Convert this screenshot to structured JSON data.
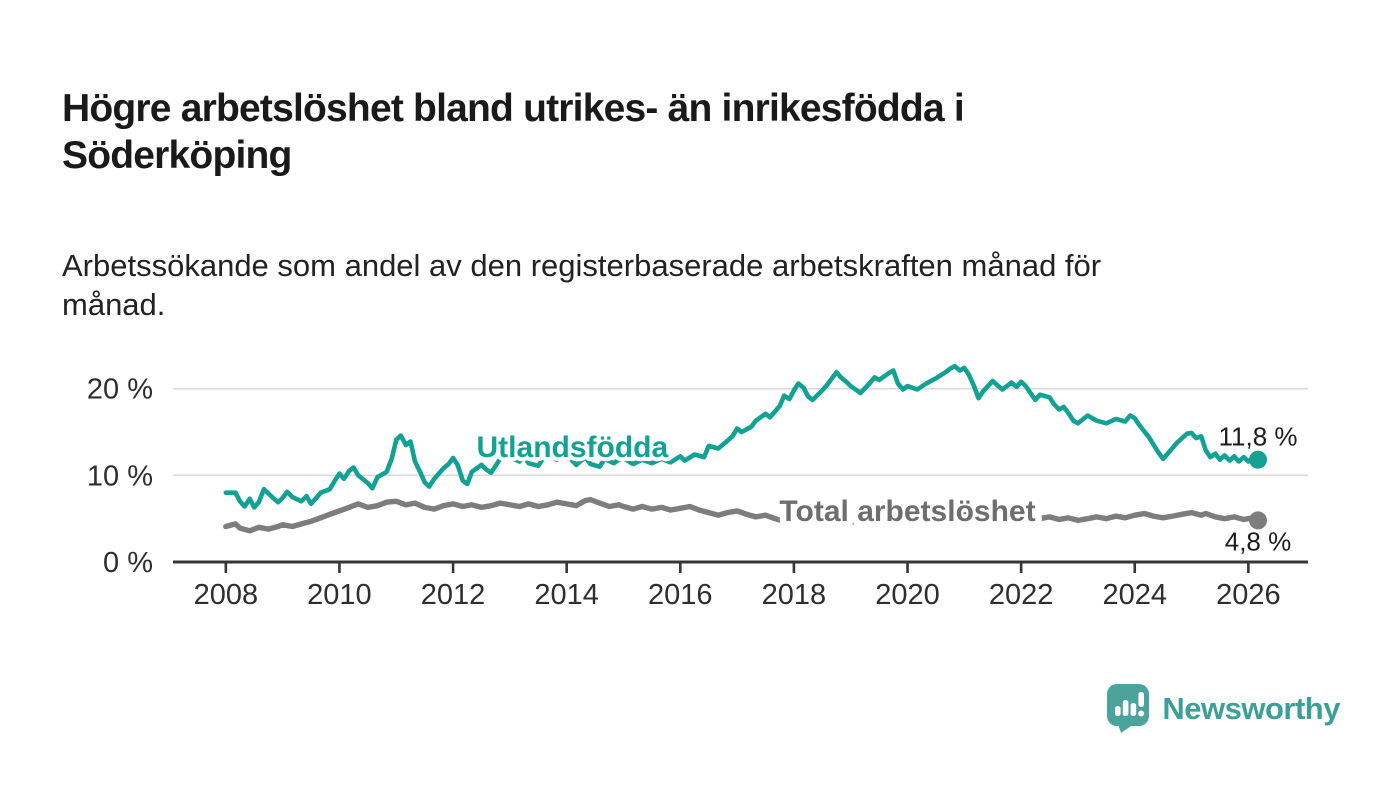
{
  "header": {
    "title": "Högre arbetslöshet bland utrikes- än inrikesfödda i Söderköping",
    "subtitle": "Arbetssökande som andel av den registerbaserade arbetskraften månad för månad."
  },
  "footer": {
    "brand": "Newsworthy",
    "brand_color": "#3d9f95",
    "logo_icon": "speech-bubble-bar-chart"
  },
  "chart_data": {
    "type": "line",
    "title": "Högre arbetslöshet bland utrikes- än inrikesfödda i Söderköping",
    "subtitle": "Arbetssökande som andel av den registerbaserade arbetskraften månad för månad.",
    "xlabel": "",
    "ylabel": "",
    "grid": "horizontal",
    "legend_position": "inline-line-labels",
    "xlim": [
      2007.07,
      2027.05
    ],
    "ylim": [
      0,
      24
    ],
    "x_ticks": [
      2008,
      2010,
      2012,
      2014,
      2016,
      2018,
      2020,
      2022,
      2024,
      2026
    ],
    "y_ticks": [
      {
        "value": 0,
        "label": "0 %"
      },
      {
        "value": 10,
        "label": "10 %"
      },
      {
        "value": 20,
        "label": "20 %"
      }
    ],
    "colors": {
      "grid": "#d9d9d9",
      "axis": "#363636",
      "tick_text": "#2e2e2e",
      "annotation_text": "#1c1c1c"
    },
    "series": [
      {
        "name": "Utlandsfödda",
        "color": "#12a192",
        "width": 4.6,
        "halo": 8,
        "end_label": "11,8 %",
        "end_value": 11.8,
        "end_label_side": "above",
        "label_at": {
          "x": 2014.1,
          "y": 13.4
        },
        "points": [
          [
            2008,
            8
          ],
          [
            2008.17,
            8
          ],
          [
            2008.25,
            7
          ],
          [
            2008.33,
            6.4
          ],
          [
            2008.42,
            7.3
          ],
          [
            2008.5,
            6.3
          ],
          [
            2008.58,
            6.9
          ],
          [
            2008.67,
            8.4
          ],
          [
            2008.83,
            7.4
          ],
          [
            2008.92,
            6.9
          ],
          [
            2009,
            7.4
          ],
          [
            2009.08,
            8.1
          ],
          [
            2009.17,
            7.5
          ],
          [
            2009.33,
            7
          ],
          [
            2009.42,
            7.6
          ],
          [
            2009.5,
            6.7
          ],
          [
            2009.58,
            7.3
          ],
          [
            2009.67,
            8
          ],
          [
            2009.83,
            8.4
          ],
          [
            2009.92,
            9.4
          ],
          [
            2010,
            10.2
          ],
          [
            2010.08,
            9.6
          ],
          [
            2010.17,
            10.5
          ],
          [
            2010.25,
            10.9
          ],
          [
            2010.33,
            10
          ],
          [
            2010.5,
            9.1
          ],
          [
            2010.58,
            8.5
          ],
          [
            2010.67,
            9.8
          ],
          [
            2010.83,
            10.4
          ],
          [
            2010.92,
            11.9
          ],
          [
            2011,
            14.1
          ],
          [
            2011.08,
            14.6
          ],
          [
            2011.17,
            13.5
          ],
          [
            2011.25,
            13.9
          ],
          [
            2011.33,
            11.6
          ],
          [
            2011.42,
            10.4
          ],
          [
            2011.5,
            9.2
          ],
          [
            2011.58,
            8.7
          ],
          [
            2011.67,
            9.6
          ],
          [
            2011.83,
            10.8
          ],
          [
            2011.92,
            11.3
          ],
          [
            2012,
            12
          ],
          [
            2012.08,
            11.2
          ],
          [
            2012.17,
            9.4
          ],
          [
            2012.25,
            9
          ],
          [
            2012.33,
            10.4
          ],
          [
            2012.5,
            11.2
          ],
          [
            2012.58,
            10.7
          ],
          [
            2012.67,
            10.3
          ],
          [
            2012.83,
            11.9
          ],
          [
            2012.92,
            12.5
          ],
          [
            2013,
            12.1
          ],
          [
            2013.17,
            11.6
          ],
          [
            2013.25,
            12.2
          ],
          [
            2013.33,
            11.4
          ],
          [
            2013.5,
            11.1
          ],
          [
            2013.58,
            11.9
          ],
          [
            2013.67,
            12.4
          ],
          [
            2013.83,
            11.8
          ],
          [
            2013.92,
            12.3
          ],
          [
            2014,
            12.6
          ],
          [
            2014.08,
            11.8
          ],
          [
            2014.17,
            11.2
          ],
          [
            2014.33,
            12.1
          ],
          [
            2014.42,
            11.3
          ],
          [
            2014.58,
            11
          ],
          [
            2014.67,
            11.9
          ],
          [
            2014.83,
            11.4
          ],
          [
            2014.92,
            11.8
          ],
          [
            2015,
            12
          ],
          [
            2015.17,
            11.3
          ],
          [
            2015.33,
            11.8
          ],
          [
            2015.5,
            11.4
          ],
          [
            2015.67,
            11.9
          ],
          [
            2015.83,
            11.5
          ],
          [
            2016,
            12.2
          ],
          [
            2016.08,
            11.7
          ],
          [
            2016.25,
            12.4
          ],
          [
            2016.42,
            12.1
          ],
          [
            2016.5,
            13.4
          ],
          [
            2016.67,
            13.1
          ],
          [
            2016.83,
            14
          ],
          [
            2016.92,
            14.5
          ],
          [
            2017,
            15.4
          ],
          [
            2017.08,
            15
          ],
          [
            2017.25,
            15.6
          ],
          [
            2017.33,
            16.3
          ],
          [
            2017.5,
            17.1
          ],
          [
            2017.58,
            16.7
          ],
          [
            2017.75,
            18
          ],
          [
            2017.83,
            19.2
          ],
          [
            2017.92,
            18.8
          ],
          [
            2018,
            19.8
          ],
          [
            2018.08,
            20.6
          ],
          [
            2018.17,
            20.1
          ],
          [
            2018.25,
            19.1
          ],
          [
            2018.33,
            18.7
          ],
          [
            2018.5,
            19.8
          ],
          [
            2018.58,
            20.4
          ],
          [
            2018.67,
            21.2
          ],
          [
            2018.75,
            21.9
          ],
          [
            2018.83,
            21.3
          ],
          [
            2018.92,
            20.8
          ],
          [
            2019,
            20.3
          ],
          [
            2019.17,
            19.5
          ],
          [
            2019.33,
            20.6
          ],
          [
            2019.42,
            21.3
          ],
          [
            2019.5,
            21
          ],
          [
            2019.67,
            21.8
          ],
          [
            2019.75,
            22.1
          ],
          [
            2019.83,
            20.6
          ],
          [
            2019.92,
            19.9
          ],
          [
            2020,
            20.3
          ],
          [
            2020.17,
            19.9
          ],
          [
            2020.33,
            20.6
          ],
          [
            2020.5,
            21.2
          ],
          [
            2020.67,
            21.9
          ],
          [
            2020.75,
            22.3
          ],
          [
            2020.83,
            22.6
          ],
          [
            2020.92,
            22.1
          ],
          [
            2021,
            22.4
          ],
          [
            2021.08,
            21.6
          ],
          [
            2021.17,
            20.3
          ],
          [
            2021.25,
            18.9
          ],
          [
            2021.33,
            19.7
          ],
          [
            2021.5,
            20.9
          ],
          [
            2021.58,
            20.4
          ],
          [
            2021.67,
            19.9
          ],
          [
            2021.83,
            20.7
          ],
          [
            2021.92,
            20.2
          ],
          [
            2022,
            20.8
          ],
          [
            2022.08,
            20.3
          ],
          [
            2022.25,
            18.7
          ],
          [
            2022.33,
            19.3
          ],
          [
            2022.5,
            19
          ],
          [
            2022.58,
            18.2
          ],
          [
            2022.67,
            17.6
          ],
          [
            2022.75,
            17.9
          ],
          [
            2022.83,
            17.2
          ],
          [
            2022.92,
            16.3
          ],
          [
            2023,
            16
          ],
          [
            2023.17,
            16.9
          ],
          [
            2023.33,
            16.3
          ],
          [
            2023.5,
            16
          ],
          [
            2023.67,
            16.5
          ],
          [
            2023.83,
            16.2
          ],
          [
            2023.92,
            16.9
          ],
          [
            2024,
            16.6
          ],
          [
            2024.08,
            15.8
          ],
          [
            2024.25,
            14.4
          ],
          [
            2024.42,
            12.6
          ],
          [
            2024.5,
            11.9
          ],
          [
            2024.58,
            12.5
          ],
          [
            2024.75,
            13.8
          ],
          [
            2024.92,
            14.8
          ],
          [
            2025,
            14.9
          ],
          [
            2025.08,
            14.3
          ],
          [
            2025.17,
            14.5
          ],
          [
            2025.25,
            12.9
          ],
          [
            2025.33,
            12.1
          ],
          [
            2025.42,
            12.5
          ],
          [
            2025.5,
            11.8
          ],
          [
            2025.58,
            12.3
          ],
          [
            2025.67,
            11.7
          ],
          [
            2025.75,
            12.2
          ],
          [
            2025.83,
            11.6
          ],
          [
            2025.92,
            12.1
          ],
          [
            2026,
            11.6
          ],
          [
            2026.08,
            12
          ],
          [
            2026.17,
            11.8
          ]
        ]
      },
      {
        "name": "Total arbetslöshet",
        "color": "#7d7d7d",
        "label_color": "#6e6e6e",
        "width": 5.4,
        "halo": 13,
        "end_label": "4,8 %",
        "end_value": 4.8,
        "end_label_side": "below",
        "label_at": {
          "x": 2020.0,
          "y": 6.0
        },
        "points": [
          [
            2008,
            4.1
          ],
          [
            2008.17,
            4.4
          ],
          [
            2008.25,
            3.9
          ],
          [
            2008.42,
            3.6
          ],
          [
            2008.58,
            4
          ],
          [
            2008.75,
            3.8
          ],
          [
            2008.92,
            4.1
          ],
          [
            2009,
            4.3
          ],
          [
            2009.17,
            4.1
          ],
          [
            2009.33,
            4.4
          ],
          [
            2009.5,
            4.7
          ],
          [
            2009.67,
            5.1
          ],
          [
            2009.83,
            5.5
          ],
          [
            2010,
            5.9
          ],
          [
            2010.17,
            6.3
          ],
          [
            2010.33,
            6.7
          ],
          [
            2010.5,
            6.3
          ],
          [
            2010.67,
            6.5
          ],
          [
            2010.83,
            6.9
          ],
          [
            2011,
            7
          ],
          [
            2011.17,
            6.6
          ],
          [
            2011.33,
            6.8
          ],
          [
            2011.5,
            6.3
          ],
          [
            2011.67,
            6.1
          ],
          [
            2011.83,
            6.5
          ],
          [
            2012,
            6.7
          ],
          [
            2012.17,
            6.4
          ],
          [
            2012.33,
            6.6
          ],
          [
            2012.5,
            6.3
          ],
          [
            2012.67,
            6.5
          ],
          [
            2012.83,
            6.8
          ],
          [
            2013,
            6.6
          ],
          [
            2013.17,
            6.4
          ],
          [
            2013.33,
            6.7
          ],
          [
            2013.5,
            6.4
          ],
          [
            2013.67,
            6.6
          ],
          [
            2013.83,
            6.9
          ],
          [
            2014,
            6.7
          ],
          [
            2014.17,
            6.5
          ],
          [
            2014.33,
            7.1
          ],
          [
            2014.42,
            7.2
          ],
          [
            2014.58,
            6.8
          ],
          [
            2014.75,
            6.4
          ],
          [
            2014.92,
            6.6
          ],
          [
            2015,
            6.4
          ],
          [
            2015.17,
            6.1
          ],
          [
            2015.33,
            6.4
          ],
          [
            2015.5,
            6.1
          ],
          [
            2015.67,
            6.3
          ],
          [
            2015.83,
            6
          ],
          [
            2016,
            6.2
          ],
          [
            2016.17,
            6.4
          ],
          [
            2016.33,
            6
          ],
          [
            2016.5,
            5.7
          ],
          [
            2016.67,
            5.4
          ],
          [
            2016.83,
            5.7
          ],
          [
            2017,
            5.9
          ],
          [
            2017.17,
            5.5
          ],
          [
            2017.33,
            5.2
          ],
          [
            2017.5,
            5.4
          ],
          [
            2017.67,
            5
          ],
          [
            2017.83,
            4.7
          ],
          [
            2018,
            4.6
          ],
          [
            2018.25,
            4.8
          ],
          [
            2018.5,
            5
          ],
          [
            2018.75,
            4.7
          ],
          [
            2019,
            4.6
          ],
          [
            2019.25,
            4.8
          ],
          [
            2019.5,
            5
          ],
          [
            2019.75,
            5.2
          ],
          [
            2020,
            5.4
          ],
          [
            2020.25,
            6.1
          ],
          [
            2020.5,
            6.4
          ],
          [
            2020.75,
            6.1
          ],
          [
            2021,
            5.8
          ],
          [
            2021.25,
            5.5
          ],
          [
            2021.5,
            5.2
          ],
          [
            2021.75,
            5
          ],
          [
            2022,
            4.9
          ],
          [
            2022.17,
            4.8
          ],
          [
            2022.33,
            5
          ],
          [
            2022.5,
            5.2
          ],
          [
            2022.67,
            4.9
          ],
          [
            2022.83,
            5.1
          ],
          [
            2023,
            4.8
          ],
          [
            2023.17,
            5
          ],
          [
            2023.33,
            5.2
          ],
          [
            2023.5,
            5
          ],
          [
            2023.67,
            5.3
          ],
          [
            2023.83,
            5.1
          ],
          [
            2024,
            5.4
          ],
          [
            2024.17,
            5.6
          ],
          [
            2024.33,
            5.3
          ],
          [
            2024.5,
            5.1
          ],
          [
            2024.67,
            5.3
          ],
          [
            2024.83,
            5.5
          ],
          [
            2025,
            5.7
          ],
          [
            2025.17,
            5.4
          ],
          [
            2025.25,
            5.6
          ],
          [
            2025.42,
            5.2
          ],
          [
            2025.58,
            5
          ],
          [
            2025.75,
            5.2
          ],
          [
            2025.92,
            4.9
          ],
          [
            2026.08,
            5.1
          ],
          [
            2026.17,
            4.8
          ]
        ]
      }
    ]
  }
}
